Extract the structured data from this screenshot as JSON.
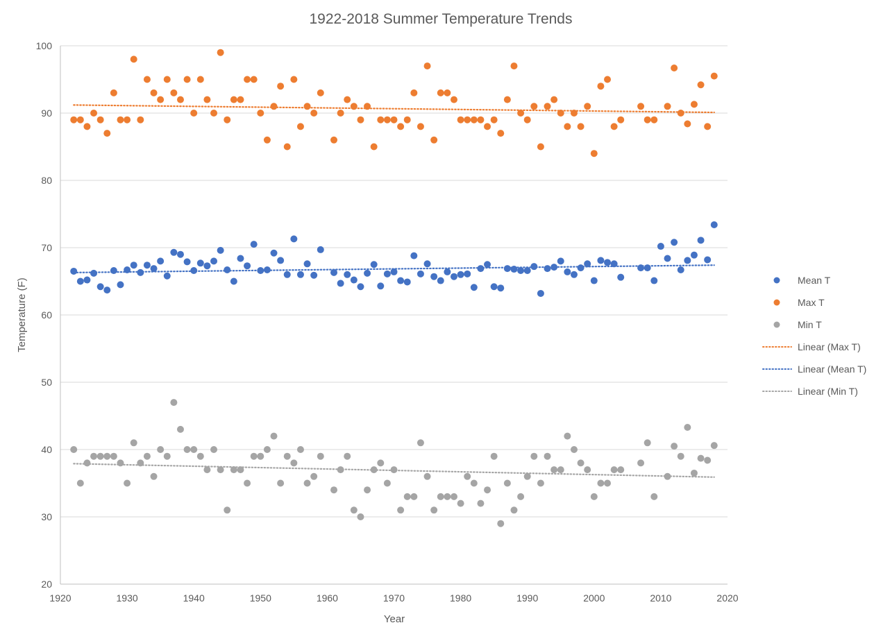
{
  "chart_data": {
    "type": "scatter",
    "title": "1922-2018 Summer Temperature Trends",
    "xlabel": "Year",
    "ylabel": "Temperature (F)",
    "xlim": [
      1920,
      2020
    ],
    "ylim": [
      20,
      100
    ],
    "xticks": [
      1920,
      1930,
      1940,
      1950,
      1960,
      1970,
      1980,
      1990,
      2000,
      2010,
      2020
    ],
    "yticks": [
      20,
      30,
      40,
      50,
      60,
      70,
      80,
      90,
      100
    ],
    "grid": "horizontal",
    "legend_position": "right",
    "series": [
      {
        "name": "Mean T",
        "color": "#4472C4",
        "kind": "points",
        "x": [
          1922,
          1923,
          1924,
          1925,
          1926,
          1927,
          1928,
          1929,
          1930,
          1931,
          1932,
          1933,
          1934,
          1935,
          1936,
          1937,
          1938,
          1939,
          1940,
          1941,
          1942,
          1943,
          1944,
          1945,
          1946,
          1947,
          1948,
          1949,
          1950,
          1951,
          1952,
          1953,
          1954,
          1955,
          1956,
          1957,
          1958,
          1959,
          1961,
          1962,
          1963,
          1964,
          1965,
          1966,
          1967,
          1968,
          1969,
          1970,
          1971,
          1972,
          1973,
          1974,
          1975,
          1976,
          1977,
          1978,
          1979,
          1980,
          1981,
          1982,
          1983,
          1984,
          1985,
          1986,
          1987,
          1988,
          1989,
          1990,
          1991,
          1992,
          1993,
          1994,
          1995,
          1996,
          1997,
          1998,
          1999,
          2000,
          2001,
          2002,
          2003,
          2004,
          2007,
          2008,
          2009,
          2010,
          2011,
          2012,
          2013,
          2014,
          2015,
          2016,
          2017,
          2018
        ],
        "y": [
          66.5,
          65.0,
          65.2,
          66.2,
          64.2,
          63.7,
          66.6,
          64.5,
          66.7,
          67.4,
          66.3,
          67.4,
          66.9,
          68.0,
          65.8,
          69.3,
          69.0,
          67.9,
          66.6,
          67.7,
          67.3,
          68.0,
          69.6,
          66.7,
          65.0,
          68.4,
          67.3,
          70.5,
          66.6,
          66.7,
          69.2,
          68.1,
          66.0,
          71.3,
          66.0,
          67.6,
          65.9,
          69.7,
          66.3,
          64.7,
          66.0,
          65.2,
          64.2,
          66.2,
          67.5,
          64.3,
          66.1,
          66.4,
          65.1,
          64.9,
          68.8,
          66.1,
          67.6,
          65.7,
          65.1,
          66.4,
          65.7,
          66.0,
          66.1,
          64.1,
          66.9,
          67.5,
          64.2,
          64.0,
          66.9,
          66.8,
          66.6,
          66.6,
          67.2,
          63.2,
          66.9,
          67.1,
          68.0,
          66.4,
          66.0,
          67.0,
          67.6,
          65.1,
          68.1,
          67.8,
          67.6,
          65.6,
          67.0,
          67.0,
          65.1,
          70.2,
          68.4,
          70.8,
          66.7,
          68.1,
          68.9,
          71.1,
          68.2,
          73.4
        ]
      },
      {
        "name": "Max T",
        "color": "#ED7D31",
        "kind": "points",
        "x": [
          1922,
          1923,
          1924,
          1925,
          1926,
          1927,
          1928,
          1929,
          1930,
          1931,
          1932,
          1933,
          1934,
          1935,
          1936,
          1937,
          1938,
          1939,
          1940,
          1941,
          1942,
          1943,
          1944,
          1945,
          1946,
          1947,
          1948,
          1949,
          1950,
          1951,
          1952,
          1953,
          1954,
          1955,
          1956,
          1957,
          1958,
          1959,
          1961,
          1962,
          1963,
          1964,
          1965,
          1966,
          1967,
          1968,
          1969,
          1970,
          1971,
          1972,
          1973,
          1974,
          1975,
          1976,
          1977,
          1978,
          1979,
          1980,
          1981,
          1982,
          1983,
          1984,
          1985,
          1986,
          1987,
          1988,
          1989,
          1990,
          1991,
          1992,
          1993,
          1994,
          1995,
          1996,
          1997,
          1998,
          1999,
          2000,
          2001,
          2002,
          2003,
          2004,
          2007,
          2008,
          2009,
          2011,
          2012,
          2013,
          2014,
          2015,
          2016,
          2017,
          2018
        ],
        "y": [
          89,
          89,
          88,
          90,
          89,
          87,
          93,
          89,
          89,
          98,
          89,
          95,
          93,
          92,
          95,
          93,
          92,
          95,
          90,
          95,
          92,
          90,
          99,
          89,
          92,
          92,
          95,
          95,
          90,
          86,
          91,
          94,
          85,
          95,
          88,
          91,
          90,
          93,
          86,
          90,
          92,
          91,
          89,
          91,
          85,
          89,
          89,
          89,
          88,
          89,
          93,
          88,
          97,
          86,
          93,
          93,
          92,
          89,
          89,
          89,
          89,
          88,
          89,
          87,
          92,
          97,
          90,
          89,
          91,
          85,
          91,
          92,
          90,
          88,
          90,
          88,
          91,
          84,
          94,
          95,
          88,
          89,
          91,
          89,
          89,
          91,
          96.7,
          90,
          88.4,
          91.3,
          94.2,
          88,
          95.5
        ]
      },
      {
        "name": "Min T",
        "color": "#A5A5A5",
        "kind": "points",
        "x": [
          1922,
          1923,
          1924,
          1925,
          1926,
          1927,
          1928,
          1929,
          1930,
          1931,
          1932,
          1933,
          1934,
          1935,
          1936,
          1937,
          1938,
          1939,
          1940,
          1941,
          1942,
          1943,
          1944,
          1945,
          1946,
          1947,
          1948,
          1949,
          1950,
          1951,
          1952,
          1953,
          1954,
          1955,
          1956,
          1957,
          1958,
          1959,
          1961,
          1962,
          1963,
          1964,
          1965,
          1966,
          1967,
          1968,
          1969,
          1970,
          1971,
          1972,
          1973,
          1974,
          1975,
          1976,
          1977,
          1978,
          1979,
          1980,
          1981,
          1982,
          1983,
          1984,
          1985,
          1986,
          1987,
          1988,
          1989,
          1990,
          1991,
          1992,
          1993,
          1994,
          1995,
          1996,
          1997,
          1998,
          1999,
          2000,
          2001,
          2002,
          2003,
          2004,
          2007,
          2008,
          2009,
          2011,
          2012,
          2013,
          2014,
          2015,
          2016,
          2017,
          2018
        ],
        "y": [
          40,
          35,
          38,
          39,
          39,
          39,
          39,
          38,
          35,
          41,
          38,
          39,
          36,
          40,
          39,
          47,
          43,
          40,
          40,
          39,
          37,
          40,
          37,
          31,
          37,
          37,
          35,
          39,
          39,
          40,
          42,
          35,
          39,
          38,
          40,
          35,
          36,
          39,
          34,
          37,
          39,
          31,
          30,
          34,
          37,
          38,
          35,
          37,
          31,
          33,
          33,
          41,
          36,
          31,
          33,
          33,
          33,
          32,
          36,
          35,
          32,
          34,
          39,
          29,
          35,
          31,
          33,
          36,
          39,
          35,
          39,
          37,
          37,
          42,
          40,
          38,
          37,
          33,
          35,
          35,
          37,
          37,
          38,
          41,
          33,
          36,
          40.5,
          39,
          43.3,
          36.5,
          38.7,
          38.4,
          40.6
        ]
      },
      {
        "name": "Linear (Max T)",
        "color": "#ED7D31",
        "kind": "trendline",
        "x": [
          1922,
          2018
        ],
        "y": [
          91.2,
          90.1
        ]
      },
      {
        "name": "Linear (Mean T)",
        "color": "#4472C4",
        "kind": "trendline",
        "x": [
          1922,
          2018
        ],
        "y": [
          66.3,
          67.4
        ]
      },
      {
        "name": "Linear (Min T)",
        "color": "#A5A5A5",
        "kind": "trendline",
        "x": [
          1922,
          2018
        ],
        "y": [
          37.9,
          35.9
        ]
      }
    ],
    "legend": [
      "Mean T",
      "Max T",
      "Min T",
      "Linear (Max T)",
      "Linear (Mean T)",
      "Linear (Min T)"
    ]
  }
}
